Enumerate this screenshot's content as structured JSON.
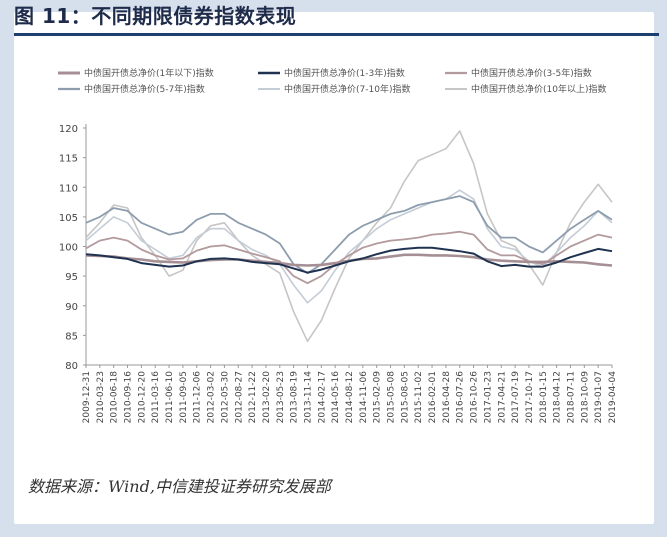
{
  "header": {
    "title": "图  11：不同期限债券指数表现"
  },
  "footer": {
    "source": "数据来源：Wind,中信建投证券研究发展部"
  },
  "colors": {
    "s1": "#a58f94",
    "s2": "#1f3350",
    "s3": "#b39a9d",
    "s4": "#8d9dae",
    "s5": "#c4ccd6",
    "s6": "#c6c6c6"
  },
  "chart_data": {
    "type": "line",
    "title": "",
    "xlabel": "",
    "ylabel": "",
    "ylim": [
      80,
      120
    ],
    "yticks": [
      80,
      85,
      90,
      95,
      100,
      105,
      110,
      115,
      120
    ],
    "grid": false,
    "legend_position": "top",
    "x_tick_labels": [
      "2009-12-31",
      "2010-03-23",
      "2010-06-18",
      "2010-09-16",
      "2010-12-20",
      "2011-03-16",
      "2011-06-10",
      "2011-09-05",
      "2011-12-06",
      "2012-03-02",
      "2012-05-30",
      "2012-08-27",
      "2012-11-22",
      "2013-02-20",
      "2013-05-23",
      "2013-08-19",
      "2013-11-14",
      "2014-02-17",
      "2014-05-16",
      "2014-08-12",
      "2014-11-06",
      "2015-02-09",
      "2015-05-08",
      "2015-08-05",
      "2015-11-02",
      "2016-02-01",
      "2016-04-28",
      "2016-07-26",
      "2016-10-26",
      "2017-01-23",
      "2017-04-21",
      "2017-07-19",
      "2017-10-17",
      "2018-01-15",
      "2018-04-12",
      "2018-07-11",
      "2018-10-09",
      "2019-01-07",
      "2019-04-04"
    ],
    "series": [
      {
        "name": "中债国开债总净价(1年以下)指数",
        "values": [
          98.5,
          98.4,
          98.3,
          98.0,
          97.8,
          97.5,
          97.4,
          97.3,
          97.5,
          97.7,
          97.8,
          97.8,
          97.6,
          97.4,
          97.2,
          96.9,
          96.8,
          96.9,
          97.2,
          97.6,
          97.9,
          98.0,
          98.3,
          98.6,
          98.6,
          98.5,
          98.5,
          98.4,
          98.2,
          97.8,
          97.6,
          97.5,
          97.4,
          97.4,
          97.5,
          97.4,
          97.3,
          97.0,
          96.8
        ]
      },
      {
        "name": "中债国开债总净价(1-3年)指数",
        "values": [
          98.7,
          98.5,
          98.2,
          97.9,
          97.2,
          96.9,
          96.6,
          96.8,
          97.5,
          97.9,
          98.0,
          97.8,
          97.4,
          97.2,
          97.0,
          96.3,
          95.6,
          96.1,
          96.8,
          97.5,
          98.0,
          98.7,
          99.3,
          99.6,
          99.8,
          99.8,
          99.5,
          99.2,
          98.8,
          97.5,
          96.7,
          96.9,
          96.6,
          96.6,
          97.3,
          98.2,
          98.9,
          99.6,
          99.2
        ]
      },
      {
        "name": "中债国开债总净价(3-5年)指数",
        "values": [
          99.7,
          101.0,
          101.5,
          101.0,
          99.5,
          98.5,
          97.8,
          98.0,
          99.3,
          100.0,
          100.2,
          99.5,
          98.8,
          98.2,
          97.5,
          95.0,
          93.8,
          95.0,
          97.0,
          98.5,
          99.8,
          100.5,
          101.0,
          101.2,
          101.5,
          102.0,
          102.2,
          102.5,
          102.0,
          99.5,
          98.5,
          98.5,
          97.5,
          97.0,
          98.5,
          100.0,
          101.0,
          102.0,
          101.5
        ]
      },
      {
        "name": "中债国开债总净价(5-7年)指数",
        "values": [
          104.0,
          105.0,
          106.5,
          106.0,
          104.0,
          103.0,
          102.0,
          102.5,
          104.5,
          105.5,
          105.5,
          104.0,
          103.0,
          102.0,
          100.5,
          97.0,
          95.5,
          97.0,
          99.5,
          102.0,
          103.5,
          104.5,
          105.5,
          106.0,
          107.0,
          107.5,
          108.0,
          108.5,
          107.5,
          103.5,
          101.5,
          101.5,
          100.0,
          99.0,
          101.0,
          103.0,
          104.5,
          106.0,
          104.5
        ]
      },
      {
        "name": "中债国开债总净价(7-10年)指数",
        "values": [
          101.0,
          103.0,
          105.0,
          104.0,
          101.0,
          99.5,
          98.0,
          98.5,
          101.5,
          103.0,
          103.0,
          101.0,
          99.5,
          98.5,
          97.0,
          93.5,
          90.5,
          92.5,
          96.0,
          99.0,
          101.0,
          103.0,
          104.5,
          105.5,
          106.5,
          107.5,
          108.0,
          109.5,
          108.0,
          103.0,
          100.0,
          99.5,
          97.5,
          96.5,
          99.0,
          101.5,
          103.5,
          106.0,
          104.0
        ]
      },
      {
        "name": "中债国开债总净价(10年以上)指数",
        "values": [
          101.5,
          104.0,
          107.0,
          106.5,
          101.5,
          98.5,
          95.0,
          96.0,
          101.0,
          103.5,
          104.0,
          101.0,
          98.5,
          97.0,
          95.5,
          89.0,
          84.0,
          87.5,
          93.0,
          98.0,
          101.0,
          104.0,
          106.5,
          111.0,
          114.5,
          115.5,
          116.5,
          119.5,
          114.0,
          105.5,
          101.0,
          100.0,
          97.0,
          93.5,
          99.0,
          104.0,
          107.5,
          110.5,
          107.5
        ]
      }
    ]
  }
}
